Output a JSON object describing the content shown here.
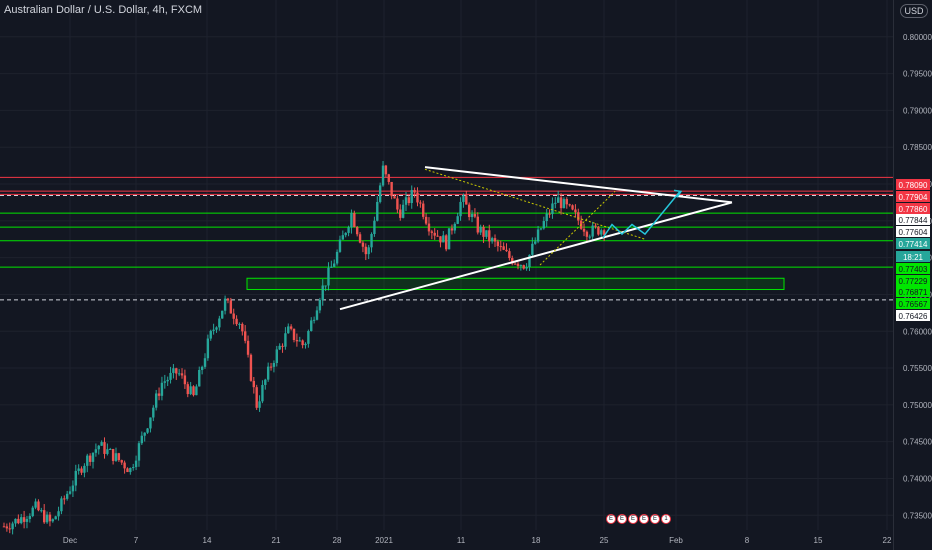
{
  "header": {
    "title": "Australian Dollar / U.S. Dollar, 4h, FXCM",
    "currency_button": "USD"
  },
  "colors": {
    "background": "#131722",
    "grid": "#1e222d",
    "up": "#26a69a",
    "down": "#ef5350",
    "trend_line": "#ffffff",
    "projection": "#26c6da",
    "resistance": "#f23645",
    "support": "#00e600",
    "dashed": "#d1d4dc",
    "diagonal": "#c8c800"
  },
  "chart_data": {
    "type": "candlestick",
    "title": "Australian Dollar / U.S. Dollar, 4h, FXCM",
    "y_axis": {
      "ticks": [
        "0.80000",
        "0.79500",
        "0.79000",
        "0.78500",
        "0.78000",
        "0.77500",
        "0.77000",
        "0.76500",
        "0.76000",
        "0.75500",
        "0.75000",
        "0.74500",
        "0.74000",
        "0.73500"
      ],
      "range": [
        0.733,
        0.805
      ]
    },
    "x_axis": {
      "ticks": [
        "Dec",
        "7",
        "14",
        "21",
        "28",
        "2021",
        "11",
        "18",
        "25",
        "Feb",
        "8",
        "15",
        "22"
      ]
    },
    "price_labels": [
      {
        "value": "0.78090",
        "style": "red-fill"
      },
      {
        "value": "0.77904",
        "style": "red-fill"
      },
      {
        "value": "0.77860",
        "style": "red-fill"
      },
      {
        "value": "0.77844",
        "style": "white"
      },
      {
        "value": "0.77604",
        "style": "white"
      },
      {
        "value": "0.77414",
        "style": "teal-fill"
      },
      {
        "value": "18:21",
        "style": "teal-fill"
      },
      {
        "value": "0.77403",
        "style": "green-fill"
      },
      {
        "value": "0.77229",
        "style": "green-fill"
      },
      {
        "value": "0.76871",
        "style": "green-fill"
      },
      {
        "value": "0.76567",
        "style": "green-fill"
      },
      {
        "value": "0.76426",
        "style": "white"
      }
    ],
    "horizontal_levels": [
      {
        "value": 0.7809,
        "kind": "resistance"
      },
      {
        "value": 0.77904,
        "kind": "resistance"
      },
      {
        "value": 0.7786,
        "kind": "resistance"
      },
      {
        "value": 0.77844,
        "kind": "dashed"
      },
      {
        "value": 0.77604,
        "kind": "support"
      },
      {
        "value": 0.77414,
        "kind": "support"
      },
      {
        "value": 0.77229,
        "kind": "support"
      },
      {
        "value": 0.76871,
        "kind": "support"
      },
      {
        "value": 0.76426,
        "kind": "dashed"
      }
    ],
    "support_zone": [
      0.76567,
      0.7672
    ],
    "triangle": {
      "upper_start": [
        0.7823
      ],
      "upper_end": [
        0.7775
      ],
      "lower_start": [
        0.763
      ],
      "lower_end": [
        0.7775
      ]
    },
    "projection_points": [
      0.7727,
      0.7745,
      0.7732,
      0.7745,
      0.7732,
      0.779
    ],
    "series_seed": {
      "candles": 210,
      "path": [
        0.7335,
        0.7345,
        0.736,
        0.7338,
        0.738,
        0.742,
        0.7445,
        0.743,
        0.7412,
        0.747,
        0.753,
        0.7545,
        0.751,
        0.759,
        0.764,
        0.761,
        0.75,
        0.756,
        0.76,
        0.758,
        0.765,
        0.77,
        0.776,
        0.77,
        0.782,
        0.776,
        0.779,
        0.774,
        0.772,
        0.778,
        0.774,
        0.772,
        0.77,
        0.769,
        0.774,
        0.778,
        0.776,
        0.7735,
        0.774
      ]
    }
  },
  "events": {
    "badges": [
      "E",
      "E",
      "E",
      "E",
      "E",
      "1"
    ]
  }
}
